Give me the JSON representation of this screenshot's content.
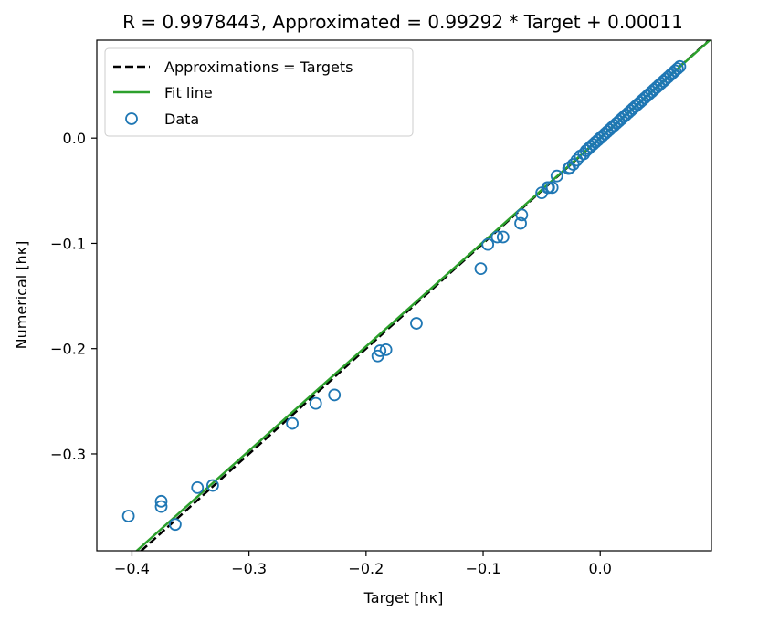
{
  "chart_data": {
    "type": "scatter",
    "title": "R = 0.9978443, Approximated = 0.99292 * Target + 0.00011",
    "xlabel": "Target [hκ]",
    "ylabel": "Numerical [hκ]",
    "xlim": [
      -0.43,
      0.095
    ],
    "ylim": [
      -0.392,
      0.093
    ],
    "xticks": [
      -0.4,
      -0.3,
      -0.2,
      -0.1,
      0.0
    ],
    "xtick_labels": [
      "−0.4",
      "−0.3",
      "−0.2",
      "−0.1",
      "0.0"
    ],
    "yticks": [
      0.0,
      -0.1,
      -0.2,
      -0.3
    ],
    "ytick_labels": [
      "0.0",
      "−0.1",
      "−0.2",
      "−0.3"
    ],
    "grid": false,
    "legend_position": "top-left",
    "fit": {
      "slope": 0.99292,
      "intercept": 0.00011
    },
    "series": [
      {
        "name": "Approximations = Targets",
        "kind": "line",
        "style": "dashed",
        "color": "#000000",
        "x": [
          -0.43,
          0.095
        ],
        "y": [
          -0.43,
          0.095
        ]
      },
      {
        "name": "Fit line",
        "kind": "line",
        "style": "solid",
        "color": "#2ca02c",
        "x": [
          -0.43,
          0.095
        ],
        "y": [
          -0.42585,
          0.09443
        ]
      },
      {
        "name": "Data",
        "kind": "scatter",
        "color": "#1f77b4",
        "x": [
          -0.403,
          -0.375,
          -0.375,
          -0.363,
          -0.344,
          -0.331,
          -0.263,
          -0.243,
          -0.227,
          -0.19,
          -0.188,
          -0.183,
          -0.157,
          -0.102,
          -0.096,
          -0.088,
          -0.083,
          -0.068,
          -0.067,
          -0.05,
          -0.045,
          -0.044,
          -0.041,
          -0.037,
          -0.027,
          -0.026,
          -0.023,
          -0.02,
          -0.017,
          -0.014,
          -0.012,
          -0.01,
          -0.008,
          -0.006,
          -0.004,
          -0.002,
          0.0,
          0.002,
          0.004,
          0.006,
          0.008,
          0.01,
          0.012,
          0.014,
          0.016,
          0.018,
          0.02,
          0.022,
          0.024,
          0.026,
          0.028,
          0.03,
          0.032,
          0.034,
          0.036,
          0.038,
          0.04,
          0.042,
          0.044,
          0.046,
          0.048,
          0.05,
          0.052,
          0.054,
          0.056,
          0.058,
          0.06,
          0.062,
          0.064,
          0.066,
          0.068
        ],
        "y": [
          -0.359,
          -0.345,
          -0.35,
          -0.367,
          -0.332,
          -0.33,
          -0.271,
          -0.252,
          -0.244,
          -0.207,
          -0.202,
          -0.201,
          -0.176,
          -0.124,
          -0.101,
          -0.094,
          -0.094,
          -0.081,
          -0.073,
          -0.052,
          -0.047,
          -0.047,
          -0.047,
          -0.036,
          -0.029,
          -0.028,
          -0.025,
          -0.021,
          -0.017,
          -0.015,
          -0.012,
          -0.01,
          -0.008,
          -0.006,
          -0.004,
          -0.002,
          0.0,
          0.002,
          0.004,
          0.006,
          0.008,
          0.01,
          0.012,
          0.014,
          0.016,
          0.018,
          0.02,
          0.022,
          0.024,
          0.026,
          0.028,
          0.03,
          0.032,
          0.034,
          0.036,
          0.038,
          0.04,
          0.042,
          0.044,
          0.046,
          0.048,
          0.05,
          0.052,
          0.054,
          0.056,
          0.058,
          0.06,
          0.062,
          0.064,
          0.066,
          0.068
        ]
      }
    ]
  }
}
